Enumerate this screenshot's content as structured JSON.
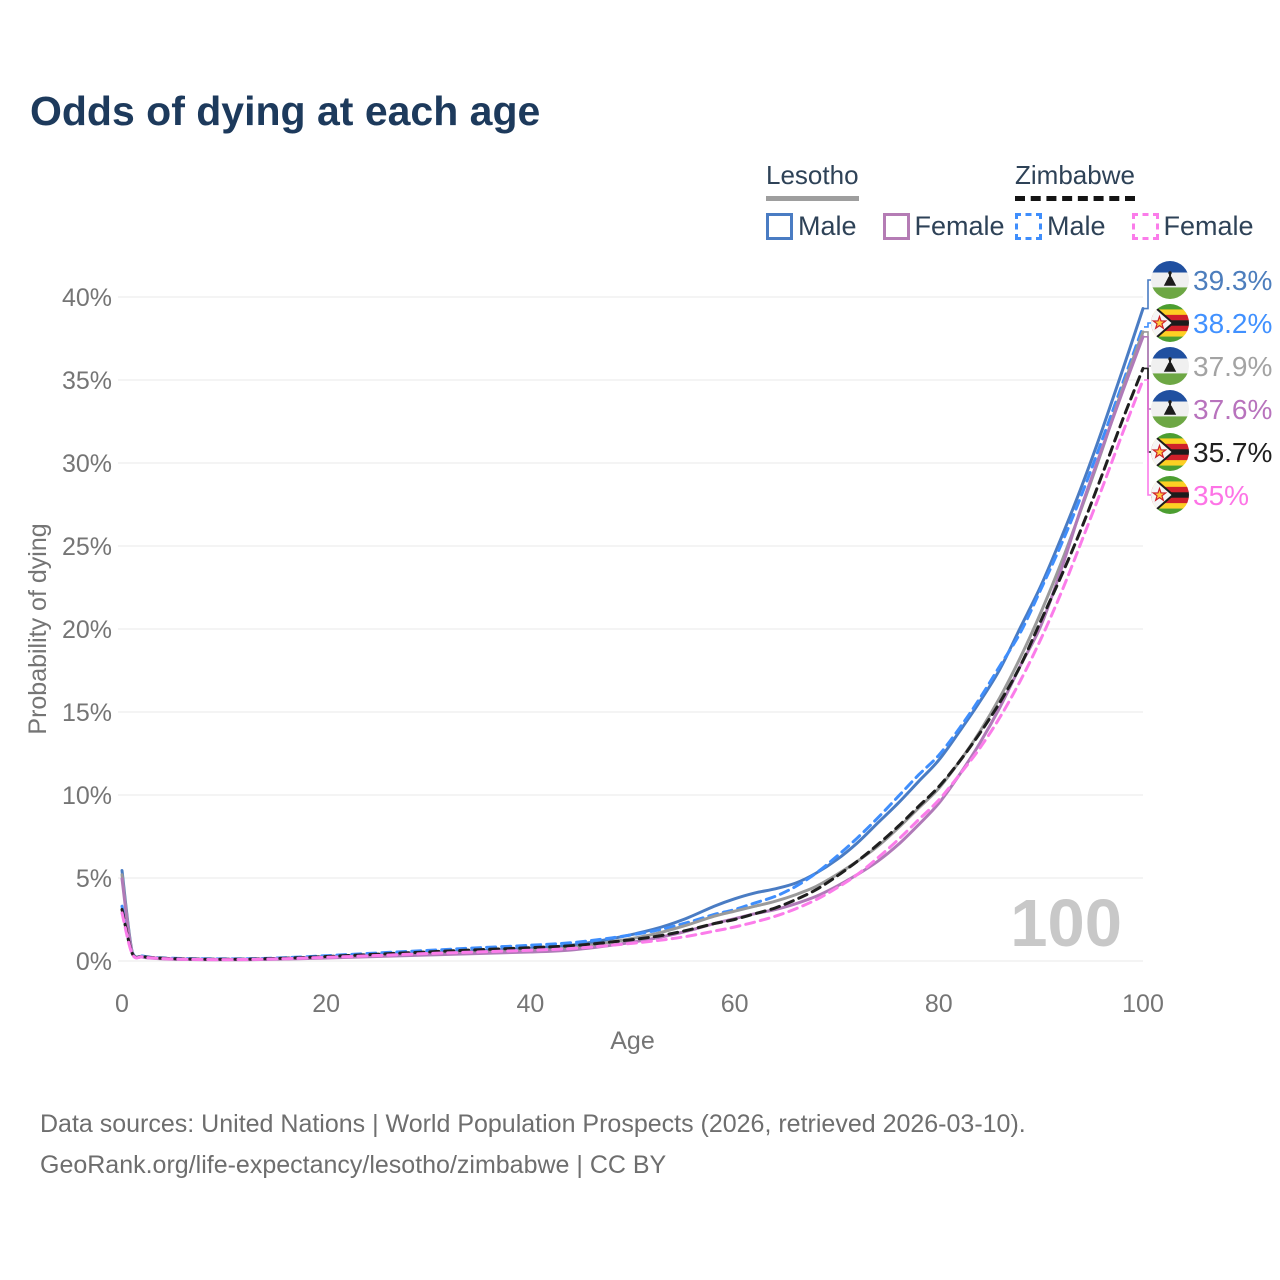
{
  "title": "Odds of dying at each age",
  "legend": {
    "groups": [
      {
        "name": "Lesotho",
        "line_style": "solid",
        "underline_color": "#9e9e9e",
        "items": [
          {
            "label": "Male",
            "color": "#4a7cc3"
          },
          {
            "label": "Female",
            "color": "#b57cb5"
          }
        ]
      },
      {
        "name": "Zimbabwe",
        "line_style": "dashed",
        "underline_color": "#141414",
        "items": [
          {
            "label": "Male",
            "color": "#3f8efc"
          },
          {
            "label": "Female",
            "color": "#fb7cea"
          }
        ]
      }
    ]
  },
  "watermark": "100",
  "footer": {
    "line1": "Data sources: United Nations | World Population Prospects (2026, retrieved 2026-03-10).",
    "line2": "GeoRank.org/life-expectancy/lesotho/zimbabwe | CC BY"
  },
  "chart_data": {
    "type": "line",
    "title": "Odds of dying at each age",
    "xlabel": "Age",
    "ylabel": "Probability of dying",
    "xlim": [
      0,
      100
    ],
    "ylim_pct": [
      0,
      40
    ],
    "x_ticks": [
      0,
      20,
      40,
      60,
      80,
      100
    ],
    "y_ticks": [
      "0%",
      "5%",
      "10%",
      "15%",
      "20%",
      "25%",
      "30%",
      "35%",
      "40%"
    ],
    "grid": "horizontal",
    "legend_position": "top-right",
    "tick_color": "#757575",
    "grid_color": "#e8e8e8",
    "series": [
      {
        "name": "Lesotho Male",
        "country": "lesotho",
        "sex": "male",
        "line": "solid",
        "color": "#4a7cc3",
        "label_color": "#4d7ebd",
        "end_label": "39.3%",
        "end_value_pct": 39.3,
        "points": [
          [
            0,
            5.45
          ],
          [
            1,
            0.55
          ],
          [
            2,
            0.28
          ],
          [
            3,
            0.2
          ],
          [
            5,
            0.13
          ],
          [
            8,
            0.1
          ],
          [
            12,
            0.1
          ],
          [
            16,
            0.16
          ],
          [
            20,
            0.26
          ],
          [
            25,
            0.38
          ],
          [
            30,
            0.5
          ],
          [
            35,
            0.62
          ],
          [
            40,
            0.78
          ],
          [
            44,
            0.95
          ],
          [
            48,
            1.35
          ],
          [
            52,
            1.9
          ],
          [
            55,
            2.5
          ],
          [
            58,
            3.3
          ],
          [
            60,
            3.75
          ],
          [
            62,
            4.1
          ],
          [
            64,
            4.35
          ],
          [
            66,
            4.7
          ],
          [
            68,
            5.3
          ],
          [
            70,
            6.1
          ],
          [
            72,
            7.1
          ],
          [
            74,
            8.3
          ],
          [
            76,
            9.5
          ],
          [
            78,
            10.8
          ],
          [
            80,
            12.1
          ],
          [
            82,
            13.8
          ],
          [
            84,
            15.6
          ],
          [
            86,
            17.6
          ],
          [
            88,
            20.1
          ],
          [
            90,
            22.6
          ],
          [
            92,
            25.5
          ],
          [
            94,
            28.6
          ],
          [
            96,
            32.0
          ],
          [
            98,
            35.6
          ],
          [
            100,
            39.3
          ]
        ]
      },
      {
        "name": "Zimbabwe Male",
        "country": "zimbabwe",
        "sex": "male",
        "line": "dashed",
        "color": "#3f8efc",
        "label_color": "#4191ff",
        "end_label": "38.2%",
        "end_value_pct": 38.2,
        "points": [
          [
            0,
            3.3
          ],
          [
            1,
            0.5
          ],
          [
            2,
            0.3
          ],
          [
            3,
            0.22
          ],
          [
            5,
            0.16
          ],
          [
            8,
            0.13
          ],
          [
            12,
            0.13
          ],
          [
            16,
            0.2
          ],
          [
            20,
            0.32
          ],
          [
            25,
            0.48
          ],
          [
            30,
            0.64
          ],
          [
            35,
            0.8
          ],
          [
            40,
            0.95
          ],
          [
            44,
            1.1
          ],
          [
            48,
            1.4
          ],
          [
            52,
            1.8
          ],
          [
            55,
            2.25
          ],
          [
            58,
            2.8
          ],
          [
            60,
            3.1
          ],
          [
            62,
            3.5
          ],
          [
            64,
            3.9
          ],
          [
            66,
            4.5
          ],
          [
            68,
            5.3
          ],
          [
            70,
            6.3
          ],
          [
            72,
            7.4
          ],
          [
            74,
            8.6
          ],
          [
            76,
            9.9
          ],
          [
            78,
            11.2
          ],
          [
            80,
            12.4
          ],
          [
            82,
            14.0
          ],
          [
            84,
            15.8
          ],
          [
            86,
            17.8
          ],
          [
            88,
            19.8
          ],
          [
            90,
            22.4
          ],
          [
            92,
            25.1
          ],
          [
            94,
            28.1
          ],
          [
            96,
            31.4
          ],
          [
            98,
            34.8
          ],
          [
            100,
            38.2
          ]
        ]
      },
      {
        "name": "Lesotho",
        "country": "lesotho",
        "sex": "both",
        "line": "solid",
        "color": "#9a9a9a",
        "label_color": "#a3a3a3",
        "end_label": "37.9%",
        "end_value_pct": 37.9,
        "points": [
          [
            0,
            5.2
          ],
          [
            1,
            0.5
          ],
          [
            2,
            0.26
          ],
          [
            3,
            0.19
          ],
          [
            5,
            0.12
          ],
          [
            8,
            0.09
          ],
          [
            12,
            0.09
          ],
          [
            16,
            0.14
          ],
          [
            20,
            0.22
          ],
          [
            25,
            0.33
          ],
          [
            30,
            0.43
          ],
          [
            35,
            0.53
          ],
          [
            40,
            0.65
          ],
          [
            44,
            0.8
          ],
          [
            48,
            1.15
          ],
          [
            52,
            1.6
          ],
          [
            55,
            2.1
          ],
          [
            58,
            2.7
          ],
          [
            60,
            3.0
          ],
          [
            62,
            3.3
          ],
          [
            64,
            3.6
          ],
          [
            66,
            4.0
          ],
          [
            68,
            4.5
          ],
          [
            70,
            5.2
          ],
          [
            72,
            6.0
          ],
          [
            74,
            6.9
          ],
          [
            76,
            8.0
          ],
          [
            78,
            9.2
          ],
          [
            80,
            10.4
          ],
          [
            82,
            12.0
          ],
          [
            84,
            13.8
          ],
          [
            86,
            15.9
          ],
          [
            88,
            18.3
          ],
          [
            90,
            21.0
          ],
          [
            92,
            24.0
          ],
          [
            94,
            27.3
          ],
          [
            96,
            30.8
          ],
          [
            98,
            34.5
          ],
          [
            100,
            37.9
          ]
        ]
      },
      {
        "name": "Lesotho Female",
        "country": "lesotho",
        "sex": "female",
        "line": "solid",
        "color": "#b07ab8",
        "label_color": "#b873bd",
        "end_label": "37.6%",
        "end_value_pct": 37.6,
        "points": [
          [
            0,
            4.95
          ],
          [
            1,
            0.45
          ],
          [
            2,
            0.24
          ],
          [
            3,
            0.17
          ],
          [
            5,
            0.11
          ],
          [
            8,
            0.08
          ],
          [
            12,
            0.08
          ],
          [
            16,
            0.12
          ],
          [
            20,
            0.18
          ],
          [
            25,
            0.27
          ],
          [
            30,
            0.36
          ],
          [
            35,
            0.45
          ],
          [
            40,
            0.54
          ],
          [
            44,
            0.66
          ],
          [
            48,
            0.95
          ],
          [
            52,
            1.35
          ],
          [
            55,
            1.75
          ],
          [
            58,
            2.25
          ],
          [
            60,
            2.55
          ],
          [
            62,
            2.85
          ],
          [
            64,
            3.1
          ],
          [
            66,
            3.45
          ],
          [
            68,
            3.9
          ],
          [
            70,
            4.5
          ],
          [
            72,
            5.2
          ],
          [
            74,
            6.0
          ],
          [
            76,
            7.0
          ],
          [
            78,
            8.2
          ],
          [
            80,
            9.5
          ],
          [
            82,
            11.2
          ],
          [
            84,
            13.1
          ],
          [
            86,
            15.3
          ],
          [
            88,
            17.8
          ],
          [
            90,
            20.2
          ],
          [
            92,
            23.6
          ],
          [
            94,
            27.4
          ],
          [
            96,
            30.9
          ],
          [
            98,
            34.3
          ],
          [
            100,
            37.6
          ]
        ]
      },
      {
        "name": "Zimbabwe",
        "country": "zimbabwe",
        "sex": "both",
        "line": "dashed",
        "color": "#1f1f1f",
        "label_color": "#1f1f1f",
        "end_label": "35.7%",
        "end_value_pct": 35.7,
        "points": [
          [
            0,
            3.1
          ],
          [
            1,
            0.47
          ],
          [
            2,
            0.28
          ],
          [
            3,
            0.2
          ],
          [
            5,
            0.14
          ],
          [
            8,
            0.11
          ],
          [
            12,
            0.11
          ],
          [
            16,
            0.17
          ],
          [
            20,
            0.27
          ],
          [
            25,
            0.41
          ],
          [
            30,
            0.55
          ],
          [
            35,
            0.68
          ],
          [
            40,
            0.8
          ],
          [
            44,
            0.92
          ],
          [
            48,
            1.15
          ],
          [
            52,
            1.45
          ],
          [
            55,
            1.8
          ],
          [
            58,
            2.25
          ],
          [
            60,
            2.5
          ],
          [
            62,
            2.85
          ],
          [
            64,
            3.2
          ],
          [
            66,
            3.7
          ],
          [
            68,
            4.3
          ],
          [
            70,
            5.1
          ],
          [
            72,
            6.0
          ],
          [
            74,
            7.0
          ],
          [
            76,
            8.1
          ],
          [
            78,
            9.3
          ],
          [
            80,
            10.5
          ],
          [
            82,
            12.0
          ],
          [
            84,
            13.7
          ],
          [
            86,
            15.6
          ],
          [
            88,
            17.8
          ],
          [
            90,
            20.5
          ],
          [
            92,
            23.2
          ],
          [
            94,
            26.1
          ],
          [
            96,
            29.3
          ],
          [
            98,
            32.6
          ],
          [
            100,
            35.7
          ]
        ]
      },
      {
        "name": "Zimbabwe Female",
        "country": "zimbabwe",
        "sex": "female",
        "line": "dashed",
        "color": "#fb7cea",
        "label_color": "#fd74e6",
        "end_label": "35%",
        "end_value_pct": 35.0,
        "points": [
          [
            0,
            2.9
          ],
          [
            1,
            0.42
          ],
          [
            2,
            0.25
          ],
          [
            3,
            0.18
          ],
          [
            5,
            0.12
          ],
          [
            8,
            0.09
          ],
          [
            12,
            0.09
          ],
          [
            16,
            0.14
          ],
          [
            20,
            0.22
          ],
          [
            25,
            0.33
          ],
          [
            30,
            0.45
          ],
          [
            35,
            0.55
          ],
          [
            40,
            0.65
          ],
          [
            44,
            0.75
          ],
          [
            48,
            0.95
          ],
          [
            52,
            1.2
          ],
          [
            55,
            1.45
          ],
          [
            58,
            1.8
          ],
          [
            60,
            2.05
          ],
          [
            62,
            2.35
          ],
          [
            64,
            2.7
          ],
          [
            66,
            3.15
          ],
          [
            68,
            3.7
          ],
          [
            70,
            4.4
          ],
          [
            72,
            5.2
          ],
          [
            74,
            6.2
          ],
          [
            76,
            7.3
          ],
          [
            78,
            8.5
          ],
          [
            80,
            9.7
          ],
          [
            82,
            11.2
          ],
          [
            84,
            12.8
          ],
          [
            86,
            14.7
          ],
          [
            88,
            16.9
          ],
          [
            90,
            19.4
          ],
          [
            92,
            22.2
          ],
          [
            94,
            25.3
          ],
          [
            96,
            28.5
          ],
          [
            98,
            31.8
          ],
          [
            100,
            35.0
          ]
        ]
      }
    ]
  }
}
